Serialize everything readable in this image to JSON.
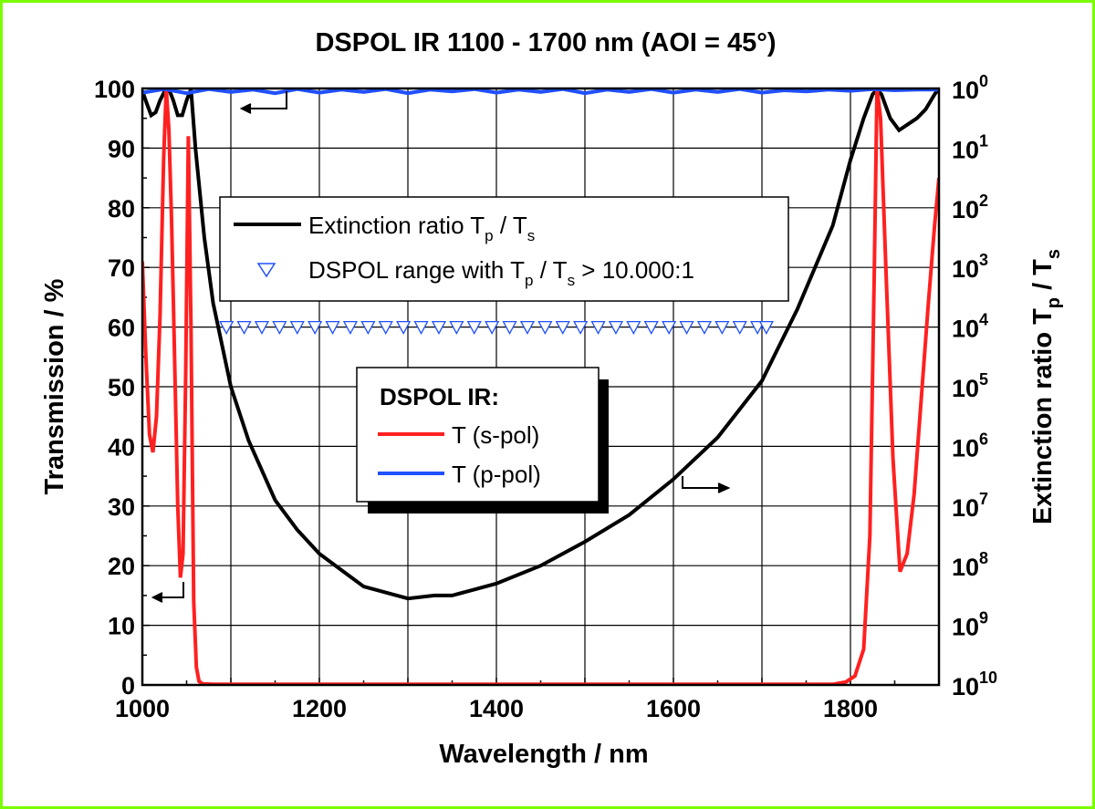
{
  "chart_data": {
    "type": "line",
    "title": "DSPOL IR 1100 - 1700 nm (AOI = 45°)",
    "xlabel": "Wavelength / nm",
    "ylabel_left": "Transmission / %",
    "ylabel_right": {
      "main": "Extinction ratio T",
      "sub1": "p",
      "mid": " / T",
      "sub2": "s"
    },
    "xlim": [
      1000,
      1900
    ],
    "ylim_left": [
      0,
      100
    ],
    "ylim_right_log": [
      0,
      10
    ],
    "right_axis_inverted": true,
    "grid": true,
    "x_ticks": [
      {
        "value": 1000,
        "label": "1000"
      },
      {
        "value": 1200,
        "label": "1200"
      },
      {
        "value": 1400,
        "label": "1400"
      },
      {
        "value": 1600,
        "label": "1600"
      },
      {
        "value": 1800,
        "label": "1800"
      }
    ],
    "y_ticks_left": [
      {
        "value": 0,
        "label": "0"
      },
      {
        "value": 10,
        "label": "10"
      },
      {
        "value": 20,
        "label": "20"
      },
      {
        "value": 30,
        "label": "30"
      },
      {
        "value": 40,
        "label": "40"
      },
      {
        "value": 50,
        "label": "50"
      },
      {
        "value": 60,
        "label": "60"
      },
      {
        "value": 70,
        "label": "70"
      },
      {
        "value": 80,
        "label": "80"
      },
      {
        "value": 90,
        "label": "90"
      },
      {
        "value": 100,
        "label": "100"
      }
    ],
    "y_ticks_right": [
      {
        "exp": 0,
        "base": "10",
        "sup": "0"
      },
      {
        "exp": 1,
        "base": "10",
        "sup": "1"
      },
      {
        "exp": 2,
        "base": "10",
        "sup": "2"
      },
      {
        "exp": 3,
        "base": "10",
        "sup": "3"
      },
      {
        "exp": 4,
        "base": "10",
        "sup": "4"
      },
      {
        "exp": 5,
        "base": "10",
        "sup": "5"
      },
      {
        "exp": 6,
        "base": "10",
        "sup": "6"
      },
      {
        "exp": 7,
        "base": "10",
        "sup": "7"
      },
      {
        "exp": 8,
        "base": "10",
        "sup": "8"
      },
      {
        "exp": 9,
        "base": "10",
        "sup": "9"
      },
      {
        "exp": 10,
        "base": "10",
        "sup": "10"
      }
    ],
    "series": [
      {
        "name": "T (s-pol)",
        "axis": "left",
        "color": "#ff2020",
        "x": [
          1000,
          1004,
          1008,
          1012,
          1016,
          1020,
          1024,
          1027,
          1030,
          1033,
          1036,
          1040,
          1043,
          1046,
          1049,
          1052,
          1055,
          1058,
          1061,
          1064,
          1068,
          1080,
          1200,
          1400,
          1600,
          1780,
          1795,
          1805,
          1815,
          1822,
          1827,
          1830,
          1834,
          1840,
          1848,
          1856,
          1864,
          1872,
          1880,
          1888,
          1895,
          1900
        ],
        "y": [
          71,
          55,
          42,
          39,
          45,
          62,
          88,
          100,
          93,
          78,
          58,
          30,
          18,
          22,
          52,
          92,
          60,
          14,
          3,
          0.6,
          0.2,
          0.1,
          0.1,
          0.1,
          0.1,
          0.1,
          0.5,
          1.5,
          6,
          25,
          70,
          100,
          95,
          70,
          38,
          19,
          22,
          32,
          48,
          64,
          77,
          85
        ]
      },
      {
        "name": "T (p-pol)",
        "axis": "left",
        "color": "#2050ff",
        "x": [
          1000,
          1025,
          1050,
          1075,
          1100,
          1125,
          1150,
          1175,
          1200,
          1225,
          1250,
          1275,
          1300,
          1325,
          1350,
          1375,
          1400,
          1425,
          1450,
          1475,
          1500,
          1525,
          1550,
          1575,
          1600,
          1625,
          1650,
          1675,
          1700,
          1725,
          1750,
          1775,
          1800,
          1825,
          1850,
          1875,
          1900
        ],
        "y": [
          99.3,
          99.9,
          99.2,
          99.9,
          99.4,
          99.8,
          99.2,
          99.9,
          99.3,
          99.8,
          99.4,
          99.9,
          99.2,
          99.8,
          99.5,
          99.9,
          99.3,
          99.8,
          99.4,
          99.9,
          99.2,
          99.8,
          99.4,
          99.9,
          99.3,
          99.8,
          99.4,
          99.9,
          99.3,
          99.7,
          99.5,
          99.8,
          99.6,
          99.9,
          99.7,
          99.8,
          99.8
        ]
      },
      {
        "name": "Extinction ratio Tp / Ts",
        "axis": "right",
        "color": "#000000",
        "x": [
          1000,
          1005,
          1010,
          1015,
          1020,
          1025,
          1030,
          1035,
          1040,
          1045,
          1050,
          1055,
          1060,
          1070,
          1080,
          1100,
          1120,
          1150,
          1175,
          1200,
          1250,
          1300,
          1330,
          1350,
          1400,
          1450,
          1500,
          1550,
          1600,
          1650,
          1700,
          1720,
          1740,
          1760,
          1780,
          1800,
          1815,
          1825,
          1830,
          1835,
          1845,
          1855,
          1865,
          1875,
          1885,
          1895,
          1900
        ],
        "y": [
          0.04,
          0.25,
          0.45,
          0.4,
          0.2,
          0.05,
          0.01,
          0.2,
          0.45,
          0.45,
          0.2,
          0.01,
          1.0,
          2.5,
          3.6,
          5.0,
          5.9,
          6.9,
          7.4,
          7.8,
          8.35,
          8.55,
          8.5,
          8.5,
          8.3,
          8.0,
          7.6,
          7.15,
          6.55,
          5.85,
          4.9,
          4.3,
          3.7,
          3.0,
          2.3,
          1.2,
          0.5,
          0.1,
          0.02,
          0.1,
          0.5,
          0.7,
          0.6,
          0.5,
          0.35,
          0.1,
          0.0
        ]
      },
      {
        "name": "DSPOL range with Tp / Ts > 10.000:1",
        "axis": "left",
        "color": "#2050ff",
        "marker": "triangle-down-open",
        "x": [
          1095,
          1115,
          1135,
          1155,
          1175,
          1195,
          1215,
          1235,
          1255,
          1275,
          1295,
          1315,
          1335,
          1355,
          1375,
          1395,
          1415,
          1435,
          1455,
          1475,
          1495,
          1515,
          1535,
          1555,
          1575,
          1595,
          1615,
          1635,
          1655,
          1675,
          1695,
          1705
        ],
        "y": [
          60,
          60,
          60,
          60,
          60,
          60,
          60,
          60,
          60,
          60,
          60,
          60,
          60,
          60,
          60,
          60,
          60,
          60,
          60,
          60,
          60,
          60,
          60,
          60,
          60,
          60,
          60,
          60,
          60,
          60,
          60,
          60
        ]
      }
    ],
    "legend_top": {
      "entry1": {
        "text": "Extinction ratio T",
        "sub1": "p",
        "mid": " / T",
        "sub2": "s"
      },
      "entry2": {
        "text": "DSPOL range with T",
        "sub1": "p",
        "mid": " / T",
        "sub2": "s",
        "tail": " > 10.000:1"
      }
    },
    "legend_box": {
      "heading": "DSPOL IR:",
      "entry1": "T (s-pol)",
      "entry2": "T (p-pol)"
    }
  }
}
